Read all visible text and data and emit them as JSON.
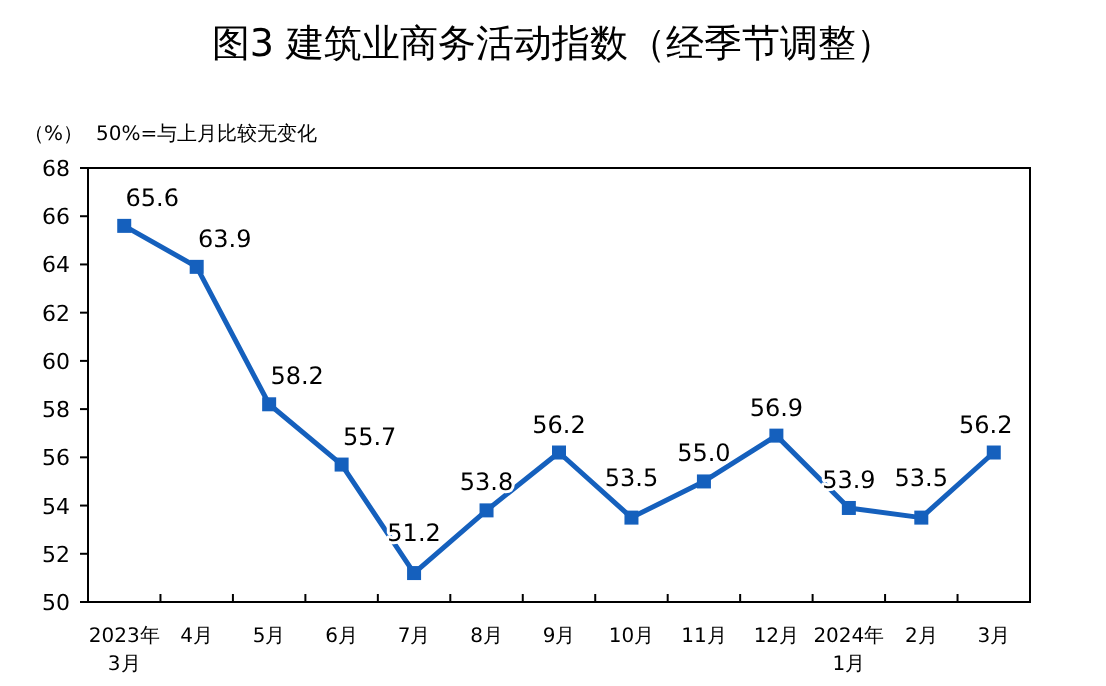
{
  "chart_data": {
    "type": "line",
    "title": "图3  建筑业商务活动指数（经季节调整）",
    "ylabel": "（%）",
    "annotations": [
      "50%=与上月比较无变化"
    ],
    "categories": [
      "2023年\n3月",
      "4月",
      "5月",
      "6月",
      "7月",
      "8月",
      "9月",
      "10月",
      "11月",
      "12月",
      "2024年\n1月",
      "2月",
      "3月"
    ],
    "series": [
      {
        "color": "#1560bd",
        "values": [
          65.6,
          63.9,
          58.2,
          55.7,
          51.2,
          53.8,
          56.2,
          53.5,
          55.0,
          56.9,
          53.9,
          53.5,
          56.2
        ]
      }
    ],
    "value_labels": [
      "65.6",
      "63.9",
      "58.2",
      "55.7",
      "51.2",
      "53.8",
      "56.2",
      "53.5",
      "55.0",
      "56.9",
      "53.9",
      "53.5",
      "56.2"
    ],
    "ylim": [
      50,
      68
    ],
    "yticks": [
      50,
      52,
      54,
      56,
      58,
      60,
      62,
      64,
      66,
      68
    ],
    "marker": "square",
    "line_style": "solid",
    "grid": false
  }
}
